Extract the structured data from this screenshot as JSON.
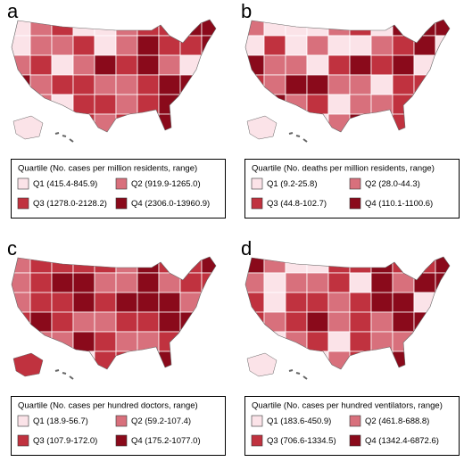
{
  "quartile_colors": [
    "#fbe3e8",
    "#d8707c",
    "#c0323f",
    "#8a0a1b"
  ],
  "panels": [
    {
      "letter": "a",
      "legend": {
        "title": "Quartile (No. cases per million residents, range)",
        "items": [
          {
            "label": "Q1 (415.4-845.9)"
          },
          {
            "label": "Q2 (919.9-1265.0)"
          },
          {
            "label": "Q3 (1278.0-2128.2)"
          },
          {
            "label": "Q4 (2306.0-13960.9)"
          }
        ]
      }
    },
    {
      "letter": "b",
      "legend": {
        "title": "Quartile (No. deaths per million residents, range)",
        "items": [
          {
            "label": "Q1 (9.2-25.8)"
          },
          {
            "label": "Q2 (28.0-44.3)"
          },
          {
            "label": "Q3 (44.8-102.7)"
          },
          {
            "label": "Q4 (110.1-1100.6)"
          }
        ]
      }
    },
    {
      "letter": "c",
      "legend": {
        "title": "Quartile (No. cases per hundred doctors, range)",
        "items": [
          {
            "label": "Q1 (18.9-56.7)"
          },
          {
            "label": "Q2 (59.2-107.4)"
          },
          {
            "label": "Q3 (107.9-172.0)"
          },
          {
            "label": "Q4 (175.2-1077.0)"
          }
        ]
      }
    },
    {
      "letter": "d",
      "legend": {
        "title": "Quartile (No. cases per hundred ventilators, range)",
        "items": [
          {
            "label": "Q1 (183.6-450.9)"
          },
          {
            "label": "Q2 (461.8-688.8)"
          },
          {
            "label": "Q3 (706.6-1334.5)"
          },
          {
            "label": "Q4 (1342.4-6872.6)"
          }
        ]
      }
    }
  ]
}
